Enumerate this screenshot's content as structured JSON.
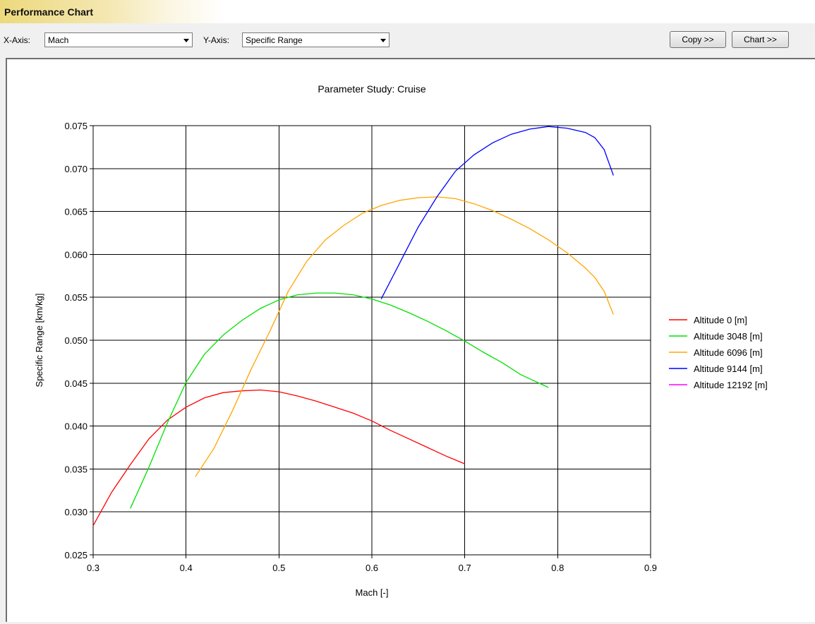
{
  "window": {
    "title": "Performance Chart"
  },
  "toolbar": {
    "x_axis_label": "X-Axis:",
    "x_axis_value": "Mach",
    "y_axis_label": "Y-Axis:",
    "y_axis_value": "Specific Range",
    "copy_label": "Copy >>",
    "chart_label": "Chart >>"
  },
  "chart_data": {
    "type": "line",
    "title": "Parameter Study: Cruise",
    "xlabel": "Mach [-]",
    "ylabel": "Specific Range [km/kg]",
    "xlim": [
      0.3,
      0.9
    ],
    "ylim": [
      0.025,
      0.075
    ],
    "xticks": [
      "0.3",
      "0.4",
      "0.5",
      "0.6",
      "0.7",
      "0.8",
      "0.9"
    ],
    "yticks": [
      "0.025",
      "0.030",
      "0.035",
      "0.040",
      "0.045",
      "0.050",
      "0.055",
      "0.060",
      "0.065",
      "0.070",
      "0.075"
    ],
    "grid": true,
    "legend_position": "right",
    "series": [
      {
        "name": "Altitude 0 [m]",
        "color": "#ff0000",
        "x": [
          0.3,
          0.32,
          0.34,
          0.36,
          0.38,
          0.4,
          0.42,
          0.44,
          0.46,
          0.48,
          0.5,
          0.52,
          0.54,
          0.56,
          0.58,
          0.6,
          0.62,
          0.64,
          0.66,
          0.68,
          0.7
        ],
        "y": [
          0.0284,
          0.0323,
          0.0355,
          0.0385,
          0.0407,
          0.0422,
          0.0433,
          0.0439,
          0.0441,
          0.0442,
          0.044,
          0.0435,
          0.0429,
          0.0422,
          0.0415,
          0.0406,
          0.0395,
          0.0385,
          0.0375,
          0.0365,
          0.0356
        ]
      },
      {
        "name": "Altitude 3048 [m]",
        "color": "#00e000",
        "x": [
          0.34,
          0.36,
          0.38,
          0.4,
          0.42,
          0.44,
          0.46,
          0.48,
          0.5,
          0.52,
          0.54,
          0.56,
          0.58,
          0.6,
          0.62,
          0.64,
          0.66,
          0.68,
          0.7,
          0.72,
          0.74,
          0.76,
          0.79
        ],
        "y": [
          0.0304,
          0.0352,
          0.0404,
          0.0451,
          0.0484,
          0.0506,
          0.0523,
          0.0537,
          0.0547,
          0.0553,
          0.0555,
          0.0555,
          0.0553,
          0.0548,
          0.0541,
          0.0532,
          0.0522,
          0.0511,
          0.0499,
          0.0486,
          0.0474,
          0.046,
          0.0445
        ]
      },
      {
        "name": "Altitude 6096 [m]",
        "color": "#ffa500",
        "x": [
          0.41,
          0.43,
          0.45,
          0.47,
          0.49,
          0.51,
          0.53,
          0.55,
          0.57,
          0.59,
          0.61,
          0.63,
          0.65,
          0.67,
          0.69,
          0.71,
          0.73,
          0.75,
          0.77,
          0.79,
          0.81,
          0.83,
          0.84,
          0.85,
          0.86
        ],
        "y": [
          0.0341,
          0.0374,
          0.0418,
          0.0466,
          0.051,
          0.0557,
          0.0592,
          0.0617,
          0.0634,
          0.0648,
          0.0657,
          0.0663,
          0.0666,
          0.0667,
          0.0665,
          0.0659,
          0.0651,
          0.0641,
          0.063,
          0.0617,
          0.0602,
          0.0584,
          0.0573,
          0.0557,
          0.053
        ]
      },
      {
        "name": "Altitude 9144 [m]",
        "color": "#0000ff",
        "x": [
          0.61,
          0.63,
          0.65,
          0.67,
          0.69,
          0.71,
          0.73,
          0.75,
          0.77,
          0.79,
          0.81,
          0.83,
          0.84,
          0.85,
          0.86
        ],
        "y": [
          0.0548,
          0.059,
          0.0632,
          0.0667,
          0.0697,
          0.0716,
          0.073,
          0.074,
          0.0746,
          0.0749,
          0.0747,
          0.0742,
          0.0736,
          0.0722,
          0.0692
        ]
      },
      {
        "name": "Altitude 12192 [m]",
        "color": "#ff00ff",
        "x": [],
        "y": []
      }
    ]
  }
}
